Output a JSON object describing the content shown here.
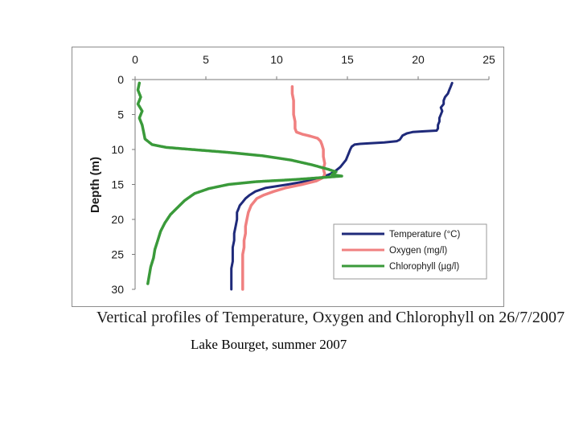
{
  "chart_data": {
    "type": "line",
    "title": "Vertical profiles of Temperature, Oxygen and Chlorophyll on 26/7/2007",
    "xlabel": "",
    "ylabel": "Depth (m)",
    "xlim": [
      0,
      25
    ],
    "ylim": [
      0,
      30
    ],
    "x_ticks": [
      0,
      5,
      10,
      15,
      20,
      25
    ],
    "y_ticks": [
      0,
      5,
      10,
      15,
      20,
      25,
      30
    ],
    "x_tick_labels": [
      "0",
      "5",
      "10",
      "15",
      "20",
      "25"
    ],
    "y_tick_labels": [
      "0",
      "5",
      "10",
      "15",
      "20",
      "25",
      "30"
    ],
    "legend_position": "bottom-right",
    "series": [
      {
        "name": "Temperature (°C)",
        "color": "#1f2a7a",
        "points": [
          [
            22.4,
            0.5
          ],
          [
            22.3,
            1
          ],
          [
            22.2,
            1.5
          ],
          [
            22.1,
            2
          ],
          [
            21.9,
            2.5
          ],
          [
            21.8,
            3
          ],
          [
            21.8,
            3.5
          ],
          [
            21.6,
            4
          ],
          [
            21.7,
            4.5
          ],
          [
            21.6,
            5
          ],
          [
            21.5,
            5.5
          ],
          [
            21.5,
            6
          ],
          [
            21.4,
            6.5
          ],
          [
            21.4,
            7
          ],
          [
            21.3,
            7.3
          ],
          [
            20.4,
            7.4
          ],
          [
            19.6,
            7.5
          ],
          [
            19.2,
            7.7
          ],
          [
            18.9,
            8
          ],
          [
            18.8,
            8.3
          ],
          [
            18.7,
            8.6
          ],
          [
            18.5,
            8.8
          ],
          [
            17.6,
            9
          ],
          [
            16.6,
            9.1
          ],
          [
            15.9,
            9.2
          ],
          [
            15.5,
            9.3
          ],
          [
            15.3,
            9.6
          ],
          [
            15.2,
            10
          ],
          [
            15.1,
            10.5
          ],
          [
            15,
            11
          ],
          [
            14.9,
            11.5
          ],
          [
            14.7,
            12
          ],
          [
            14.5,
            12.5
          ],
          [
            14.2,
            13
          ],
          [
            13.8,
            13.5
          ],
          [
            13.2,
            14
          ],
          [
            12.2,
            14.5
          ],
          [
            10.8,
            15
          ],
          [
            9.2,
            15.5
          ],
          [
            8.5,
            16
          ],
          [
            8.1,
            16.5
          ],
          [
            7.8,
            17
          ],
          [
            7.6,
            17.5
          ],
          [
            7.4,
            18
          ],
          [
            7.3,
            18.5
          ],
          [
            7.2,
            19
          ],
          [
            7.2,
            20
          ],
          [
            7.1,
            21
          ],
          [
            7.0,
            22
          ],
          [
            7.0,
            23
          ],
          [
            6.9,
            24
          ],
          [
            6.9,
            25
          ],
          [
            6.9,
            26
          ],
          [
            6.8,
            27
          ],
          [
            6.8,
            28
          ],
          [
            6.8,
            29
          ],
          [
            6.8,
            30
          ]
        ]
      },
      {
        "name": "Oxygen (mg/l)",
        "color": "#f08080",
        "points": [
          [
            11.1,
            1
          ],
          [
            11.1,
            2
          ],
          [
            11.2,
            3
          ],
          [
            11.2,
            4
          ],
          [
            11.2,
            5
          ],
          [
            11.3,
            6
          ],
          [
            11.3,
            7
          ],
          [
            11.4,
            7.5
          ],
          [
            11.8,
            7.8
          ],
          [
            12.4,
            8.1
          ],
          [
            12.9,
            8.4
          ],
          [
            13.1,
            8.8
          ],
          [
            13.2,
            9.3
          ],
          [
            13.3,
            10
          ],
          [
            13.3,
            11
          ],
          [
            13.4,
            12
          ],
          [
            13.3,
            12.8
          ],
          [
            13.4,
            13.5
          ],
          [
            13.3,
            14
          ],
          [
            12.8,
            14.5
          ],
          [
            11.8,
            15
          ],
          [
            10.6,
            15.5
          ],
          [
            9.8,
            16
          ],
          [
            9.1,
            16.5
          ],
          [
            8.6,
            17
          ],
          [
            8.4,
            17.5
          ],
          [
            8.2,
            18
          ],
          [
            8.0,
            19
          ],
          [
            7.9,
            20
          ],
          [
            7.8,
            21
          ],
          [
            7.8,
            22
          ],
          [
            7.7,
            23
          ],
          [
            7.7,
            24
          ],
          [
            7.6,
            25
          ],
          [
            7.6,
            26
          ],
          [
            7.6,
            27
          ],
          [
            7.6,
            28
          ],
          [
            7.6,
            29
          ],
          [
            7.6,
            30
          ]
        ]
      },
      {
        "name": "Chlorophyll (µg/l)",
        "color": "#3a9a3a",
        "points": [
          [
            0.3,
            0.5
          ],
          [
            0.2,
            1.5
          ],
          [
            0.4,
            2.5
          ],
          [
            0.2,
            3.5
          ],
          [
            0.5,
            4.5
          ],
          [
            0.3,
            5.5
          ],
          [
            0.5,
            6.5
          ],
          [
            0.6,
            7.5
          ],
          [
            0.7,
            8.5
          ],
          [
            1.2,
            9.3
          ],
          [
            2.2,
            9.7
          ],
          [
            4,
            10
          ],
          [
            6.5,
            10.4
          ],
          [
            9,
            10.9
          ],
          [
            11,
            11.5
          ],
          [
            12.5,
            12.2
          ],
          [
            13.6,
            12.8
          ],
          [
            14.2,
            13.2
          ],
          [
            13.9,
            13.6
          ],
          [
            14.6,
            13.8
          ],
          [
            13.3,
            14
          ],
          [
            11.3,
            14.3
          ],
          [
            8.6,
            14.6
          ],
          [
            6.6,
            15
          ],
          [
            5.2,
            15.6
          ],
          [
            4.2,
            16.3
          ],
          [
            3.5,
            17.3
          ],
          [
            3.0,
            18.3
          ],
          [
            2.5,
            19.3
          ],
          [
            2.1,
            20.5
          ],
          [
            1.8,
            21.7
          ],
          [
            1.6,
            23
          ],
          [
            1.4,
            24.3
          ],
          [
            1.3,
            25.5
          ],
          [
            1.1,
            26.8
          ],
          [
            1.0,
            28
          ],
          [
            0.9,
            29.2
          ]
        ]
      }
    ]
  },
  "caption": "Vertical profiles of Temperature, Oxygen and Chlorophyll on 26/7/2007",
  "subtitle": "Lake Bourget, summer 2007"
}
